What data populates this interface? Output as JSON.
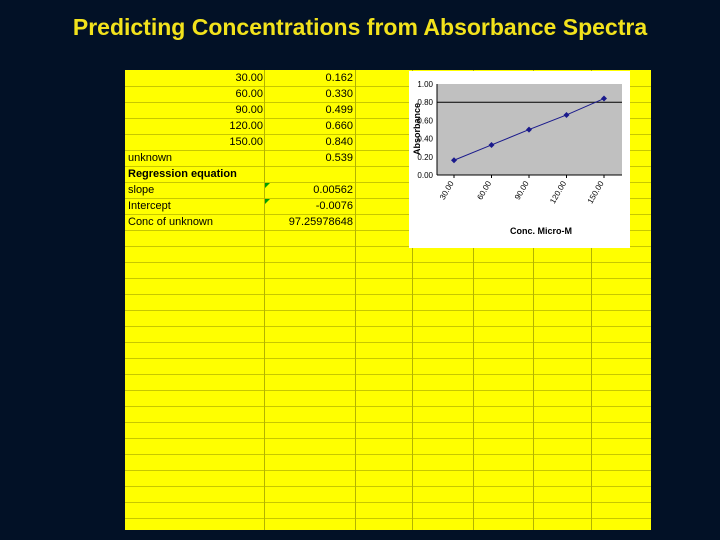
{
  "slide_title": "Predicting Concentrations from Absorbance Spectra",
  "sheet": {
    "rows": [
      {
        "a": "",
        "b": "30.00",
        "c": "0.162"
      },
      {
        "a": "",
        "b": "60.00",
        "c": "0.330"
      },
      {
        "a": "",
        "b": "90.00",
        "c": "0.499"
      },
      {
        "a": "",
        "b": "120.00",
        "c": "0.660"
      },
      {
        "a": "",
        "b": "150.00",
        "c": "0.840"
      },
      {
        "a": "unknown",
        "b": "",
        "c": "0.539"
      },
      {
        "a": "Regression equation",
        "b": "",
        "c": ""
      },
      {
        "a": "slope",
        "b": "",
        "c": "0.00562"
      },
      {
        "a": "Intercept",
        "b": "",
        "c": "-0.0076"
      },
      {
        "a": "Conc of unknown",
        "b": "",
        "c": "97.25978648"
      }
    ]
  },
  "chart_data": {
    "type": "line",
    "x": [
      30,
      60,
      90,
      120,
      150
    ],
    "y": [
      0.162,
      0.33,
      0.499,
      0.66,
      0.84
    ],
    "x_tick_labels": [
      "30.00",
      "60.00",
      "90.00",
      "120.00",
      "150.00"
    ],
    "y_tick_labels": [
      "0.00",
      "0.20",
      "0.40",
      "0.60",
      "0.80",
      "1.00"
    ],
    "xlabel": "Conc. Micro-M",
    "ylabel": "Absorbance",
    "ylim": [
      0,
      1
    ],
    "gridline_y": 0.8,
    "color": "#1a1a8c"
  }
}
